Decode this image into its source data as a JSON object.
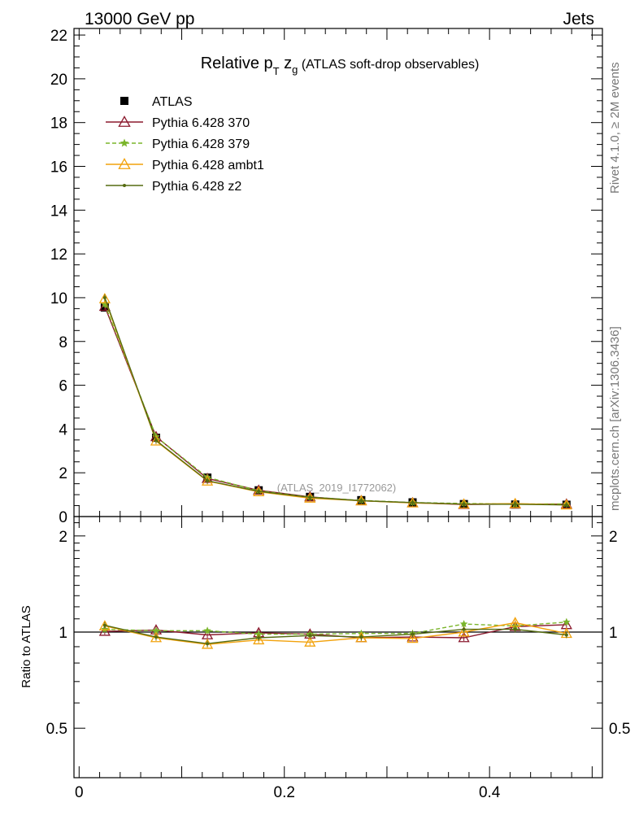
{
  "header": {
    "left_label": "13000 GeV pp",
    "right_label": "Jets"
  },
  "side_labels": {
    "rivet": "Rivet 4.1.0, ≥ 2M events",
    "mcplots": "mcplots.cern.ch [arXiv:1306.3436]"
  },
  "chart_data": [
    {
      "type": "line",
      "title_main": "Relative p",
      "title_sub_t": "T",
      "title_z": " z",
      "title_sub_g": "g",
      "title_rest": " (ATLAS soft-drop observables)",
      "watermark": "(ATLAS_2019_I1772062)",
      "xlim": [
        -0.005,
        0.51
      ],
      "ylim": [
        0,
        22.3
      ],
      "yticks": [
        0,
        2,
        4,
        6,
        8,
        10,
        12,
        14,
        16,
        18,
        20,
        22
      ],
      "ytick_labels": [
        "0",
        "2",
        "4",
        "6",
        "8",
        "10",
        "12",
        "14",
        "16",
        "18",
        "20",
        "22"
      ],
      "x": [
        0.025,
        0.075,
        0.125,
        0.175,
        0.225,
        0.275,
        0.325,
        0.375,
        0.425,
        0.475
      ],
      "legend": [
        "ATLAS",
        "Pythia 6.428 370",
        "Pythia 6.428 379",
        "Pythia 6.428 ambt1",
        "Pythia 6.428 z2"
      ],
      "series": [
        {
          "name": "ATLAS",
          "color": "#000000",
          "marker": "square",
          "values": [
            9.55,
            3.6,
            1.78,
            1.2,
            0.9,
            0.75,
            0.65,
            0.57,
            0.55,
            0.54
          ]
        },
        {
          "name": "Pythia 6.428 370",
          "color": "#8b1a2e",
          "marker": "triangle-open",
          "values": [
            9.6,
            3.65,
            1.74,
            1.2,
            0.9,
            0.72,
            0.63,
            0.55,
            0.57,
            0.57
          ]
        },
        {
          "name": "Pythia 6.428 379",
          "color": "#7ab52a",
          "marker": "star",
          "dashed": true,
          "values": [
            9.7,
            3.65,
            1.79,
            1.18,
            0.89,
            0.74,
            0.64,
            0.6,
            0.57,
            0.58
          ]
        },
        {
          "name": "Pythia 6.428 ambt1",
          "color": "#f2a20c",
          "marker": "triangle-open",
          "values": [
            9.95,
            3.45,
            1.62,
            1.13,
            0.84,
            0.72,
            0.62,
            0.57,
            0.59,
            0.53
          ]
        },
        {
          "name": "Pythia 6.428 z2",
          "color": "#556b10",
          "marker": "dot",
          "values": [
            10.0,
            3.48,
            1.64,
            1.15,
            0.88,
            0.72,
            0.64,
            0.57,
            0.56,
            0.53
          ]
        }
      ]
    },
    {
      "type": "line",
      "ylabel": "Ratio to ATLAS",
      "xlim": [
        -0.005,
        0.51
      ],
      "ylim": [
        0.35,
        2.3
      ],
      "yticks": [
        0.5,
        1,
        2
      ],
      "ytick_labels": [
        "0.5",
        "1",
        "2"
      ],
      "xticks": [
        0,
        0.2,
        0.4
      ],
      "xtick_labels": [
        "0",
        "0.2",
        "0.4"
      ],
      "x": [
        0.025,
        0.075,
        0.125,
        0.175,
        0.225,
        0.275,
        0.325,
        0.375,
        0.425,
        0.475
      ],
      "series": [
        {
          "name": "Pythia 6.428 370",
          "color": "#8b1a2e",
          "marker": "triangle-open",
          "values": [
            1.005,
            1.015,
            0.98,
            0.995,
            0.985,
            0.96,
            0.965,
            0.96,
            1.04,
            1.055
          ]
        },
        {
          "name": "Pythia 6.428 379",
          "color": "#7ab52a",
          "marker": "star",
          "dashed": true,
          "values": [
            1.02,
            1.01,
            1.01,
            0.985,
            0.985,
            0.99,
            0.99,
            1.06,
            1.045,
            1.075
          ]
        },
        {
          "name": "Pythia 6.428 ambt1",
          "color": "#f2a20c",
          "marker": "triangle-open",
          "values": [
            1.045,
            0.96,
            0.915,
            0.945,
            0.93,
            0.96,
            0.955,
            1.0,
            1.07,
            0.99
          ]
        },
        {
          "name": "Pythia 6.428 z2",
          "color": "#556b10",
          "marker": "dot",
          "values": [
            1.05,
            0.965,
            0.92,
            0.96,
            0.975,
            0.965,
            0.985,
            1.02,
            1.02,
            0.98
          ]
        }
      ]
    }
  ]
}
